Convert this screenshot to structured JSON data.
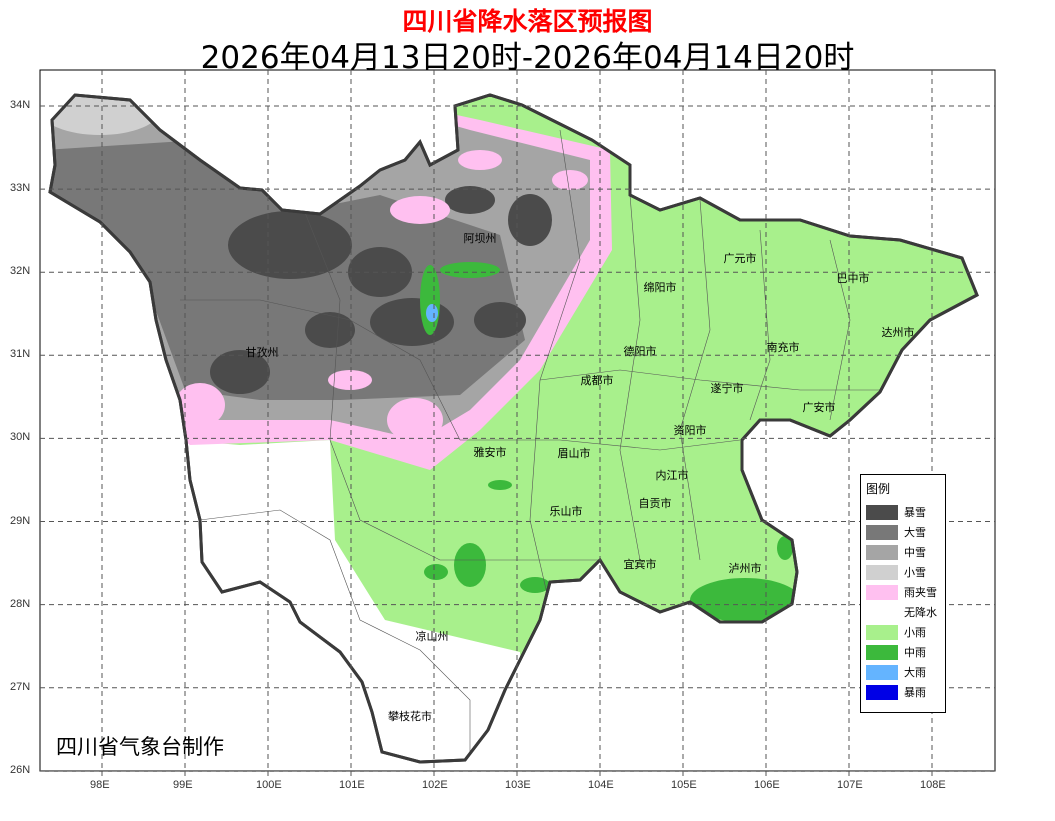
{
  "title": "四川省降水落区预报图",
  "subtitle": "2026年04月13日20时-2026年04月14日20时",
  "credit": "四川省气象台制作",
  "axes": {
    "x_ticks": [
      "98E",
      "99E",
      "100E",
      "101E",
      "102E",
      "103E",
      "104E",
      "105E",
      "106E",
      "107E",
      "108E"
    ],
    "y_ticks": [
      "34N",
      "33N",
      "32N",
      "31N",
      "30N",
      "29N",
      "28N",
      "27N",
      "26N"
    ]
  },
  "legend": {
    "title": "图例",
    "items": [
      {
        "label": "暴雪",
        "color": "#4b4b4b"
      },
      {
        "label": "大雪",
        "color": "#787878"
      },
      {
        "label": "中雪",
        "color": "#a5a5a5"
      },
      {
        "label": "小雪",
        "color": "#d0d0d0"
      },
      {
        "label": "雨夹雪",
        "color": "#ffc0f0"
      },
      {
        "label": "无降水",
        "color": "#ffffff"
      },
      {
        "label": "小雨",
        "color": "#a8f08c"
      },
      {
        "label": "中雨",
        "color": "#3cb93c"
      },
      {
        "label": "大雨",
        "color": "#64b4ff"
      },
      {
        "label": "暴雨",
        "color": "#0000e6"
      }
    ]
  },
  "cities": [
    "阿坝州",
    "甘孜州",
    "绵阳市",
    "广元市",
    "巴中市",
    "达州市",
    "南充市",
    "德阳市",
    "成都市",
    "遂宁市",
    "广安市",
    "资阳市",
    "雅安市",
    "眉山市",
    "内江市",
    "乐山市",
    "自贡市",
    "宜宾市",
    "泸州市",
    "凉山州",
    "攀枝花市"
  ]
}
